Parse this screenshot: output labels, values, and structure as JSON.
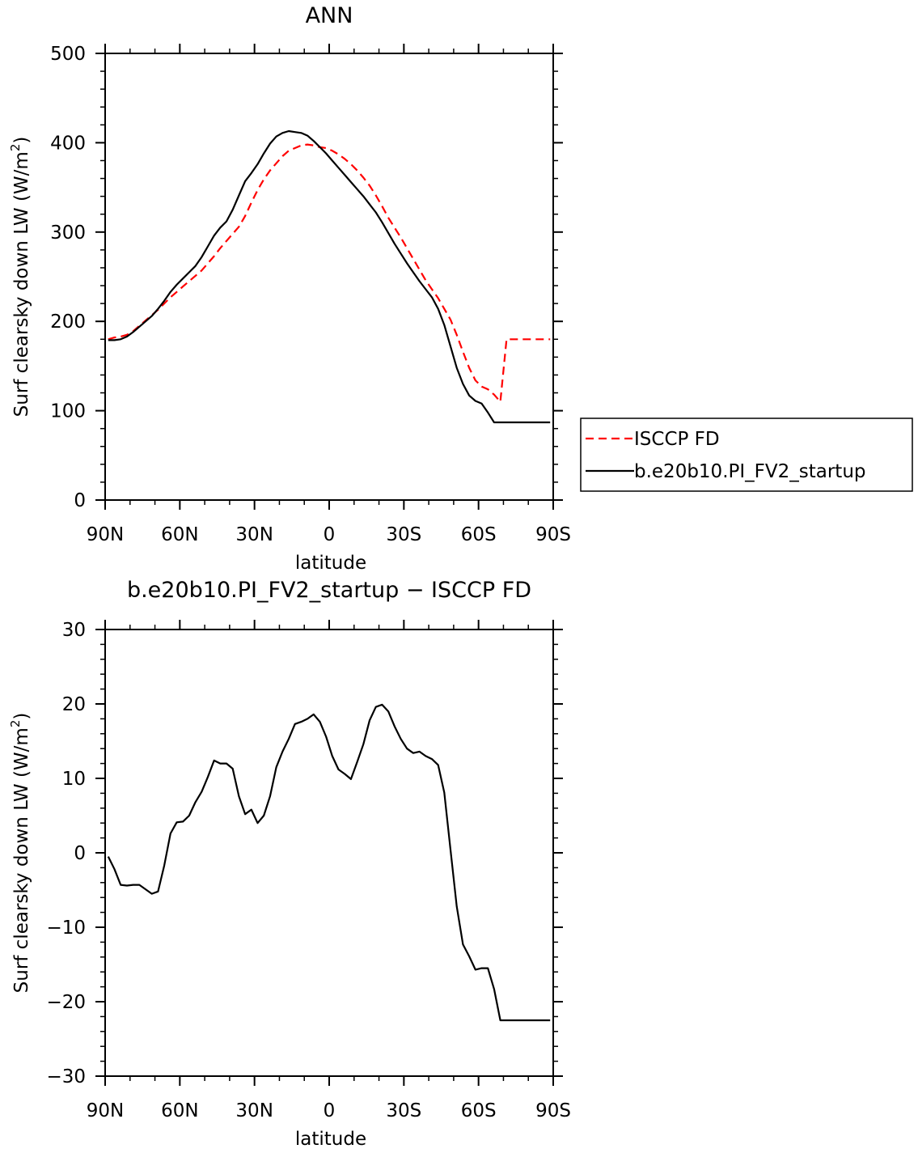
{
  "chart_data": [
    {
      "type": "line",
      "title": "ANN",
      "xlabel": "latitude",
      "ylabel": "Surf clearsky down LW (W/m²)",
      "ylabel_base": "Surf clearsky down LW (W/m",
      "ylabel_sup": "2",
      "ylabel_end": ")",
      "xlim": [
        90,
        -90
      ],
      "ylim": [
        0,
        500
      ],
      "x_ticks": [
        90,
        60,
        30,
        0,
        -30,
        -60,
        -90
      ],
      "x_tick_labels": [
        "90N",
        "60N",
        "30N",
        "0",
        "30S",
        "60S",
        "90S"
      ],
      "y_ticks": [
        0,
        100,
        200,
        300,
        400,
        500
      ],
      "y_tick_labels": [
        "0",
        "100",
        "200",
        "300",
        "400",
        "500"
      ],
      "grid": false,
      "legend_position": "right",
      "series": [
        {
          "name": "ISCCP FD",
          "color": "#ff0000",
          "dash": "dashed",
          "x": [
            88.75,
            86.25,
            83.75,
            81.25,
            78.75,
            76.25,
            73.75,
            71.25,
            68.75,
            66.25,
            63.75,
            61.25,
            58.75,
            56.25,
            53.75,
            51.25,
            48.75,
            46.25,
            43.75,
            41.25,
            38.75,
            36.25,
            33.75,
            31.25,
            28.75,
            26.25,
            23.75,
            21.25,
            18.75,
            16.25,
            13.75,
            11.25,
            8.75,
            6.25,
            3.75,
            1.25,
            -1.25,
            -3.75,
            -6.25,
            -8.75,
            -11.25,
            -13.75,
            -16.25,
            -18.75,
            -21.25,
            -23.75,
            -26.25,
            -28.75,
            -31.25,
            -33.75,
            -36.25,
            -38.75,
            -41.25,
            -43.75,
            -46.25,
            -48.75,
            -51.25,
            -53.75,
            -56.25,
            -58.75,
            -61.25,
            -63.75,
            -66.25,
            -68.75,
            -71.25,
            -73.75,
            -76.25,
            -78.75,
            -81.25,
            -83.75,
            -86.25,
            -88.75
          ],
          "y": [
            180,
            182,
            183,
            185,
            189,
            195,
            201,
            207,
            213,
            220,
            227,
            233,
            239,
            245,
            251,
            257,
            265,
            273,
            282,
            290,
            298,
            306,
            318,
            333,
            347,
            359,
            369,
            377,
            385,
            391,
            394,
            397,
            398,
            397,
            395,
            394,
            391,
            387,
            382,
            376,
            369,
            361,
            352,
            341,
            329,
            316,
            305,
            294,
            282,
            270,
            258,
            246,
            236,
            226,
            214,
            202,
            185,
            166,
            148,
            134,
            127,
            124,
            118,
            110,
            180,
            180,
            180,
            180,
            180,
            180,
            180,
            180
          ],
          "y_note": "values read from the figure"
        },
        {
          "name": "b.e20b10.PI_FV2_startup",
          "color": "#000000",
          "dash": "solid",
          "x": [
            88.75,
            86.25,
            83.75,
            81.25,
            78.75,
            76.25,
            73.75,
            71.25,
            68.75,
            66.25,
            63.75,
            61.25,
            58.75,
            56.25,
            53.75,
            51.25,
            48.75,
            46.25,
            43.75,
            41.25,
            38.75,
            36.25,
            33.75,
            31.25,
            28.75,
            26.25,
            23.75,
            21.25,
            18.75,
            16.25,
            13.75,
            11.25,
            8.75,
            6.25,
            3.75,
            1.25,
            -1.25,
            -3.75,
            -6.25,
            -8.75,
            -11.25,
            -13.75,
            -16.25,
            -18.75,
            -21.25,
            -23.75,
            -26.25,
            -28.75,
            -31.25,
            -33.75,
            -36.25,
            -38.75,
            -41.25,
            -43.75,
            -46.25,
            -48.75,
            -51.25,
            -53.75,
            -56.25,
            -58.75,
            -61.25,
            -63.75,
            -66.25,
            -68.75,
            -71.25,
            -73.75,
            -76.25,
            -78.75,
            -81.25,
            -83.75,
            -86.25,
            -88.75
          ],
          "y": [
            179,
            179,
            180,
            183,
            188,
            194,
            200,
            206,
            214,
            223,
            233,
            241,
            248,
            255,
            262,
            272,
            284,
            296,
            305,
            312,
            325,
            341,
            357,
            366,
            376,
            388,
            399,
            407,
            411,
            413,
            412,
            411,
            408,
            402,
            395,
            388,
            380,
            372,
            364,
            356,
            348,
            340,
            331,
            322,
            311,
            299,
            287,
            276,
            265,
            255,
            245,
            236,
            227,
            214,
            196,
            172,
            148,
            130,
            117,
            111,
            108,
            98,
            87,
            87,
            87,
            87,
            87,
            87,
            87,
            87,
            87,
            87
          ]
        }
      ]
    },
    {
      "type": "line",
      "title": "b.e20b10.PI_FV2_startup − ISCCP FD",
      "xlabel": "latitude",
      "ylabel": "Surf clearsky down LW (W/m²)",
      "ylabel_base": "Surf clearsky down LW (W/m",
      "ylabel_sup": "2",
      "ylabel_end": ")",
      "xlim": [
        90,
        -90
      ],
      "ylim": [
        -30,
        30
      ],
      "x_ticks": [
        90,
        60,
        30,
        0,
        -30,
        -60,
        -90
      ],
      "x_tick_labels": [
        "90N",
        "60N",
        "30N",
        "0",
        "30S",
        "60S",
        "90S"
      ],
      "y_ticks": [
        -30,
        -20,
        -10,
        0,
        10,
        20,
        30
      ],
      "y_tick_labels": [
        "−30",
        "−20",
        "−10",
        "0",
        "10",
        "20",
        "30"
      ],
      "grid": false,
      "series": [
        {
          "color": "#000000",
          "dash": "solid",
          "x": [
            88.75,
            86.25,
            83.75,
            81.25,
            78.75,
            76.25,
            73.75,
            71.25,
            68.75,
            66.25,
            63.75,
            61.25,
            58.75,
            56.25,
            53.75,
            51.25,
            48.75,
            46.25,
            43.75,
            41.25,
            38.75,
            36.25,
            33.75,
            31.25,
            28.75,
            26.25,
            23.75,
            21.25,
            18.75,
            16.25,
            13.75,
            11.25,
            8.75,
            6.25,
            3.75,
            1.25,
            -1.25,
            -3.75,
            -6.25,
            -8.75,
            -11.25,
            -13.75,
            -16.25,
            -18.75,
            -21.25,
            -23.75,
            -26.25,
            -28.75,
            -31.25,
            -33.75,
            -36.25,
            -38.75,
            -41.25,
            -43.75,
            -46.25,
            -48.75,
            -51.25,
            -53.75,
            -56.25,
            -58.75,
            -61.25,
            -63.75,
            -66.25,
            -68.75,
            -71.25,
            -73.75,
            -76.25,
            -78.75,
            -81.25,
            -83.75,
            -86.25,
            -88.75
          ],
          "y": [
            -0.5,
            -2.2,
            -4.3,
            -4.4,
            -4.3,
            -4.3,
            -4.9,
            -5.5,
            -5.2,
            -1.7,
            2.6,
            4.1,
            4.2,
            5.0,
            6.8,
            8.2,
            10.2,
            12.4,
            12.0,
            12.0,
            11.3,
            7.6,
            5.2,
            5.8,
            4.0,
            5.0,
            7.6,
            11.5,
            13.6,
            15.3,
            17.3,
            17.6,
            18.0,
            18.6,
            17.6,
            15.6,
            13.0,
            11.2,
            10.6,
            9.9,
            12.2,
            14.6,
            17.8,
            19.6,
            19.9,
            19.0,
            17.0,
            15.3,
            14.0,
            13.4,
            13.6,
            13.0,
            12.6,
            11.8,
            8.1,
            0.4,
            -7.2,
            -12.3,
            -13.9,
            -15.7,
            -15.5,
            -15.5,
            -18.3,
            -22.5,
            -22.5,
            -22.5,
            -22.5,
            -22.5,
            -22.5,
            -22.5,
            -22.5,
            -22.5
          ]
        }
      ]
    }
  ]
}
